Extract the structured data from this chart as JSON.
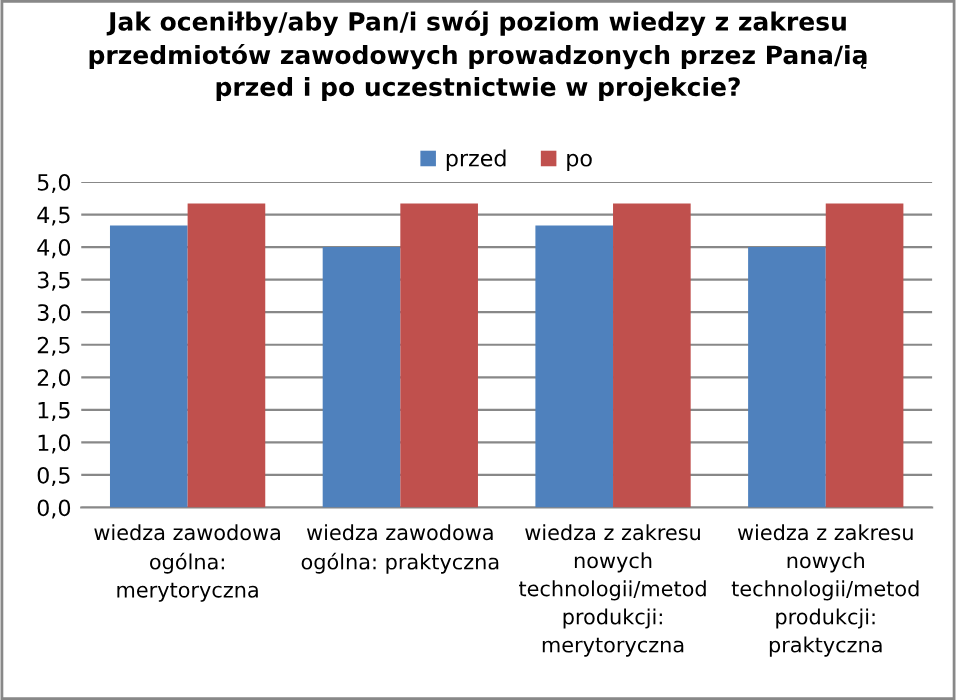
{
  "chart_data": {
    "type": "bar",
    "title": "Jak oceniłby/aby Pan/i swój poziom wiedzy z zakresu\nprzedmiotów zawodowych prowadzonych przez Pana/ią\nprzed i po uczestnictwie w projekcie?",
    "categories": [
      "wiedza zawodowa\nogólna:\nmerytoryczna",
      "wiedza zawodowa\nogólna: praktyczna",
      "wiedza z zakresu\nnowych\ntechnologii/metod\nprodukcji:\nmerytoryczna",
      "wiedza z zakresu\nnowych\ntechnologii/metod\nprodukcji:\npraktyczna"
    ],
    "series": [
      {
        "name": "przed",
        "color": "#4f81bd",
        "values": [
          4.33,
          4.0,
          4.33,
          4.0
        ]
      },
      {
        "name": "po",
        "color": "#c0504d",
        "values": [
          4.67,
          4.67,
          4.67,
          4.67
        ]
      }
    ],
    "ylim": [
      0,
      5
    ],
    "yticks": [
      {
        "value": 0,
        "label": "0,0"
      },
      {
        "value": 0.5,
        "label": "0,5"
      },
      {
        "value": 1,
        "label": "1,0"
      },
      {
        "value": 1.5,
        "label": "1,5"
      },
      {
        "value": 2,
        "label": "2,0"
      },
      {
        "value": 2.5,
        "label": "2,5"
      },
      {
        "value": 3,
        "label": "3,0"
      },
      {
        "value": 3.5,
        "label": "3,5"
      },
      {
        "value": 4,
        "label": "4,0"
      },
      {
        "value": 4.5,
        "label": "4,5"
      },
      {
        "value": 5,
        "label": "5,0"
      }
    ],
    "grid": "y",
    "legend": "top"
  }
}
